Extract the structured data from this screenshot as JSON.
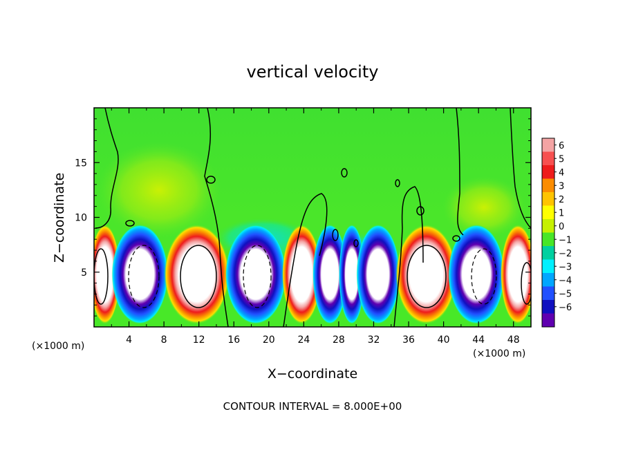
{
  "chart_data": {
    "type": "heatmap",
    "title": "vertical velocity",
    "xlabel": "X−coordinate",
    "ylabel": "Z−coordinate",
    "x_unit_left": "(×1000 m)",
    "x_unit_right": "(×1000 m)",
    "footnote": "CONTOUR INTERVAL = 8.000E+00",
    "xlim": [
      0,
      50
    ],
    "ylim": [
      0,
      20
    ],
    "x_ticks": [
      "4",
      "8",
      "12",
      "16",
      "20",
      "24",
      "28",
      "32",
      "36",
      "40",
      "44",
      "48"
    ],
    "x_tick_values": [
      4,
      8,
      12,
      16,
      20,
      24,
      28,
      32,
      36,
      40,
      44,
      48
    ],
    "y_ticks": [
      "5",
      "10",
      "15"
    ],
    "y_tick_values": [
      5,
      10,
      15
    ],
    "colorbar": {
      "labels": [
        "6",
        "5",
        "4",
        "3",
        "2",
        "1",
        "0",
        "−1",
        "−2",
        "−3",
        "−4",
        "−5",
        "−6"
      ],
      "colors": [
        "#f4a4a4",
        "#f75050",
        "#ee1c1c",
        "#fb8c00",
        "#ffc400",
        "#ffff00",
        "#c6f000",
        "#48e628",
        "#00d0a0",
        "#00f0ff",
        "#00a6ff",
        "#2050ff",
        "#1010c0",
        "#6000b0"
      ]
    },
    "cells": [
      {
        "x0": 0,
        "x1": 2.5,
        "kind": "up"
      },
      {
        "x0": 2.5,
        "x1": 8,
        "kind": "down"
      },
      {
        "x0": 8.5,
        "x1": 15,
        "kind": "up"
      },
      {
        "x0": 15.5,
        "x1": 21.5,
        "kind": "down"
      },
      {
        "x0": 22,
        "x1": 25.5,
        "kind": "up"
      },
      {
        "x0": 25.5,
        "x1": 28.5,
        "kind": "down"
      },
      {
        "x0": 28.5,
        "x1": 30.5,
        "kind": "down"
      },
      {
        "x0": 30.5,
        "x1": 34.5,
        "kind": "down"
      },
      {
        "x0": 35,
        "x1": 41,
        "kind": "up"
      },
      {
        "x0": 41,
        "x1": 46.5,
        "kind": "down"
      },
      {
        "x0": 47,
        "x1": 50,
        "kind": "up"
      }
    ]
  }
}
